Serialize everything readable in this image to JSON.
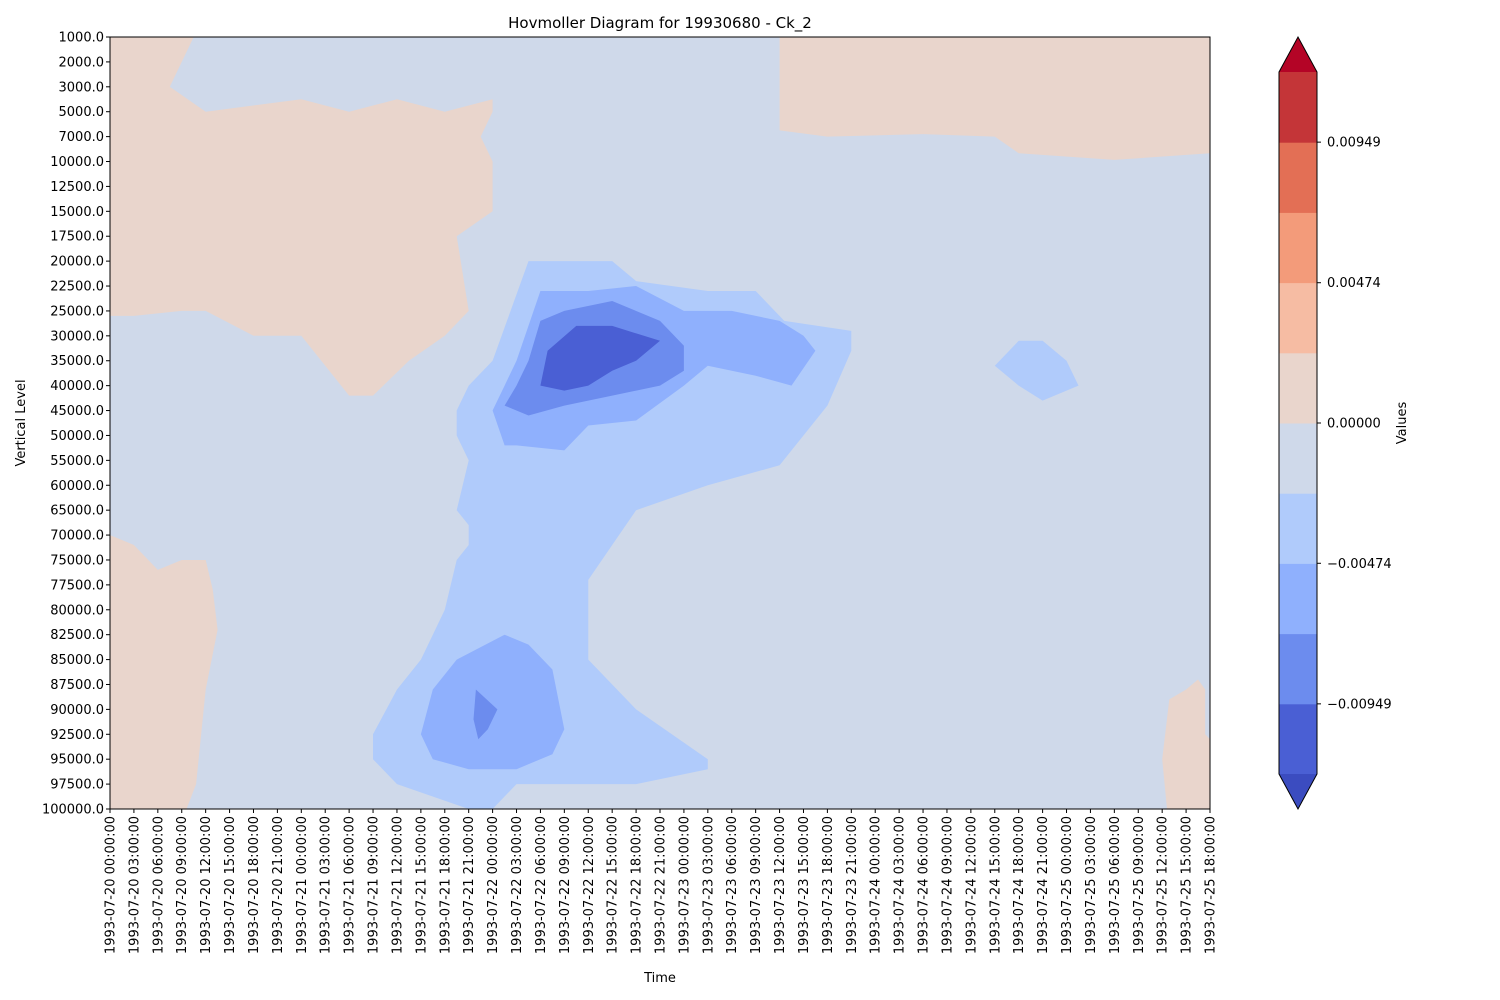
{
  "chart_data": {
    "type": "contour",
    "title": "Hovmoller Diagram for 19930680 - Ck_2",
    "xlabel": "Time",
    "ylabel": "Vertical Level",
    "colorbar_label": "Values",
    "colormap": "coolwarm",
    "y_axis_inverted": true,
    "x_tick_labels": [
      "1993-07-20 00:00:00",
      "1993-07-20 03:00:00",
      "1993-07-20 06:00:00",
      "1993-07-20 09:00:00",
      "1993-07-20 12:00:00",
      "1993-07-20 15:00:00",
      "1993-07-20 18:00:00",
      "1993-07-20 21:00:00",
      "1993-07-21 00:00:00",
      "1993-07-21 03:00:00",
      "1993-07-21 06:00:00",
      "1993-07-21 09:00:00",
      "1993-07-21 12:00:00",
      "1993-07-21 15:00:00",
      "1993-07-21 18:00:00",
      "1993-07-21 21:00:00",
      "1993-07-22 00:00:00",
      "1993-07-22 03:00:00",
      "1993-07-22 06:00:00",
      "1993-07-22 09:00:00",
      "1993-07-22 12:00:00",
      "1993-07-22 15:00:00",
      "1993-07-22 18:00:00",
      "1993-07-22 21:00:00",
      "1993-07-23 00:00:00",
      "1993-07-23 03:00:00",
      "1993-07-23 06:00:00",
      "1993-07-23 09:00:00",
      "1993-07-23 12:00:00",
      "1993-07-23 15:00:00",
      "1993-07-23 18:00:00",
      "1993-07-23 21:00:00",
      "1993-07-24 00:00:00",
      "1993-07-24 03:00:00",
      "1993-07-24 06:00:00",
      "1993-07-24 09:00:00",
      "1993-07-24 12:00:00",
      "1993-07-24 15:00:00",
      "1993-07-24 18:00:00",
      "1993-07-24 21:00:00",
      "1993-07-25 00:00:00",
      "1993-07-25 03:00:00",
      "1993-07-25 06:00:00",
      "1993-07-25 09:00:00",
      "1993-07-25 12:00:00",
      "1993-07-25 15:00:00",
      "1993-07-25 18:00:00"
    ],
    "y_tick_labels": [
      "1000.0",
      "2000.0",
      "3000.0",
      "5000.0",
      "7000.0",
      "10000.0",
      "12500.0",
      "15000.0",
      "17500.0",
      "20000.0",
      "22500.0",
      "25000.0",
      "30000.0",
      "35000.0",
      "40000.0",
      "45000.0",
      "50000.0",
      "55000.0",
      "60000.0",
      "65000.0",
      "70000.0",
      "75000.0",
      "77500.0",
      "80000.0",
      "82500.0",
      "85000.0",
      "87500.0",
      "90000.0",
      "92500.0",
      "95000.0",
      "97500.0",
      "100000.0"
    ],
    "colorbar": {
      "levels": [
        -0.01424,
        -0.01186,
        -0.00949,
        -0.00712,
        -0.00474,
        -0.00237,
        0.0,
        0.00237,
        0.00474,
        0.00712,
        0.00949,
        0.01186,
        0.01424
      ],
      "colors": [
        "#4a5fd4",
        "#6c8cee",
        "#8fb0fd",
        "#b0cbfb",
        "#cfd9ea",
        "#e9d5cc",
        "#f6bca3",
        "#f39b7a",
        "#e36f55",
        "#c43538"
      ],
      "extend_low_color": "#3b4cc0",
      "extend_high_color": "#b40426",
      "tick_values": [
        0.00949,
        0.00474,
        0.0,
        -0.00474,
        -0.00949
      ],
      "tick_labels": [
        "0.00949",
        "0.00474",
        "0.00000",
        "−0.00474",
        "−0.00949"
      ]
    },
    "regions": [
      {
        "name": "positive-upper-left",
        "level": "0.00000 to 0.00237",
        "color": "#e9d5cc",
        "points": [
          [
            0.0,
            1000
          ],
          [
            3.5,
            1000
          ],
          [
            2.5,
            3000
          ],
          [
            4,
            5000
          ],
          [
            8,
            4000
          ],
          [
            10,
            5000
          ],
          [
            12,
            4000
          ],
          [
            14,
            5000
          ],
          [
            16,
            4000
          ],
          [
            16,
            5000
          ],
          [
            15.5,
            7000
          ],
          [
            16,
            10000
          ],
          [
            16,
            15000
          ],
          [
            14.5,
            17500
          ],
          [
            15,
            25000
          ],
          [
            14,
            30000
          ],
          [
            12.5,
            35000
          ],
          [
            11,
            42000
          ],
          [
            10,
            42000
          ],
          [
            8,
            30000
          ],
          [
            6,
            30000
          ],
          [
            4,
            25000
          ],
          [
            3,
            25000
          ],
          [
            1,
            26000
          ],
          [
            0,
            26000
          ]
        ]
      },
      {
        "name": "positive-lower-left",
        "level": "0.00000 to 0.00237",
        "color": "#e9d5cc",
        "points": [
          [
            0,
            70000
          ],
          [
            1,
            72000
          ],
          [
            2,
            76000
          ],
          [
            3,
            75000
          ],
          [
            4,
            75000
          ],
          [
            4.3,
            78000
          ],
          [
            4.5,
            82000
          ],
          [
            4,
            88000
          ],
          [
            3.6,
            97500
          ],
          [
            3.2,
            100000
          ],
          [
            0,
            100000
          ]
        ]
      },
      {
        "name": "positive-upper-right",
        "level": "0.00000 to 0.00237",
        "color": "#e9d5cc",
        "points": [
          [
            28,
            1000
          ],
          [
            46,
            1000
          ],
          [
            46,
            9000
          ],
          [
            42,
            9800
          ],
          [
            38,
            9000
          ],
          [
            37,
            7000
          ],
          [
            34,
            6800
          ],
          [
            30,
            7000
          ],
          [
            28,
            6500
          ]
        ]
      },
      {
        "name": "positive-lower-right",
        "level": "0.00000 to 0.00237",
        "color": "#e9d5cc",
        "points": [
          [
            44.3,
            89000
          ],
          [
            45,
            88000
          ],
          [
            45.5,
            87000
          ],
          [
            45.8,
            88000
          ],
          [
            45.8,
            92500
          ],
          [
            46,
            93000
          ],
          [
            46,
            100000
          ],
          [
            44.2,
            100000
          ],
          [
            44,
            95000
          ]
        ]
      },
      {
        "name": "negative-outer",
        "level": "-0.00474 to -0.00237",
        "color": "#b0cbfb",
        "points": [
          [
            17.5,
            20000
          ],
          [
            21,
            20000
          ],
          [
            22,
            22000
          ],
          [
            25,
            23000
          ],
          [
            27,
            23000
          ],
          [
            28.2,
            27000
          ],
          [
            29.6,
            28000
          ],
          [
            31,
            29000
          ],
          [
            31,
            33000
          ],
          [
            30,
            44000
          ],
          [
            28,
            56000
          ],
          [
            25,
            60000
          ],
          [
            22,
            65000
          ],
          [
            21,
            72000
          ],
          [
            20,
            77000
          ],
          [
            20,
            85000
          ],
          [
            22,
            90000
          ],
          [
            25,
            95000
          ],
          [
            25,
            96000
          ],
          [
            22,
            97500
          ],
          [
            17,
            97500
          ],
          [
            16,
            100000
          ],
          [
            15,
            100000
          ],
          [
            12,
            97500
          ],
          [
            11,
            95000
          ],
          [
            11,
            92500
          ],
          [
            12,
            88000
          ],
          [
            13,
            85000
          ],
          [
            14,
            80000
          ],
          [
            14.5,
            75000
          ],
          [
            15,
            72000
          ],
          [
            15,
            68000
          ],
          [
            14.5,
            65000
          ],
          [
            15,
            55000
          ],
          [
            14.5,
            50000
          ],
          [
            14.5,
            45000
          ],
          [
            15,
            40000
          ],
          [
            16,
            35000
          ]
        ]
      },
      {
        "name": "negative-mid-upper",
        "level": "-0.00712 to -0.00474",
        "color": "#8fb0fd",
        "points": [
          [
            18,
            23000
          ],
          [
            20,
            23000
          ],
          [
            22,
            22500
          ],
          [
            24,
            25000
          ],
          [
            26,
            25000
          ],
          [
            28,
            27000
          ],
          [
            29,
            30000
          ],
          [
            29.5,
            33000
          ],
          [
            28.5,
            40000
          ],
          [
            27,
            38000
          ],
          [
            25,
            36000
          ],
          [
            24,
            40000
          ],
          [
            22,
            47000
          ],
          [
            20,
            48000
          ],
          [
            19,
            53000
          ],
          [
            17,
            52000
          ],
          [
            16.5,
            52000
          ],
          [
            16,
            45000
          ],
          [
            16.5,
            40000
          ],
          [
            17,
            35000
          ]
        ]
      },
      {
        "name": "negative-mid-lower",
        "level": "-0.00712 to -0.00474",
        "color": "#8fb0fd",
        "points": [
          [
            16.5,
            82500
          ],
          [
            17.5,
            83500
          ],
          [
            18.5,
            86000
          ],
          [
            19,
            92000
          ],
          [
            18.5,
            94500
          ],
          [
            17,
            96000
          ],
          [
            15,
            96000
          ],
          [
            13.5,
            95000
          ],
          [
            13,
            92500
          ],
          [
            13.5,
            88000
          ],
          [
            14.5,
            85000
          ]
        ]
      },
      {
        "name": "negative-isolated",
        "level": "-0.00474 to -0.00237",
        "color": "#b0cbfb",
        "points": [
          [
            37,
            36000
          ],
          [
            38,
            31000
          ],
          [
            39,
            31000
          ],
          [
            40,
            35000
          ],
          [
            40.5,
            40000
          ],
          [
            39,
            43000
          ],
          [
            38,
            40000
          ]
        ]
      },
      {
        "name": "negative-inner",
        "level": "-0.00949 to -0.00712",
        "color": "#6c8cee",
        "points": [
          [
            18,
            27000
          ],
          [
            19,
            25000
          ],
          [
            21,
            24000
          ],
          [
            23,
            27000
          ],
          [
            24,
            32000
          ],
          [
            24,
            37000
          ],
          [
            23,
            40000
          ],
          [
            21,
            42000
          ],
          [
            19,
            44000
          ],
          [
            17.5,
            46000
          ],
          [
            16.5,
            44000
          ],
          [
            17,
            40000
          ],
          [
            17.5,
            35000
          ]
        ]
      },
      {
        "name": "negative-core",
        "level": "-0.01186 to -0.00949",
        "color": "#4a5fd4",
        "points": [
          [
            18.3,
            33000
          ],
          [
            19.5,
            28000
          ],
          [
            21,
            28000
          ],
          [
            23,
            31000
          ],
          [
            22,
            35000
          ],
          [
            21,
            37000
          ],
          [
            20,
            40000
          ],
          [
            19,
            41000
          ],
          [
            18,
            40000
          ]
        ]
      },
      {
        "name": "negative-lower-core",
        "level": "-0.00949 to -0.00712",
        "color": "#6c8cee",
        "points": [
          [
            15.3,
            88000
          ],
          [
            16.2,
            90000
          ],
          [
            15.8,
            92000
          ],
          [
            15.4,
            93000
          ],
          [
            15.2,
            91000
          ]
        ]
      }
    ]
  }
}
